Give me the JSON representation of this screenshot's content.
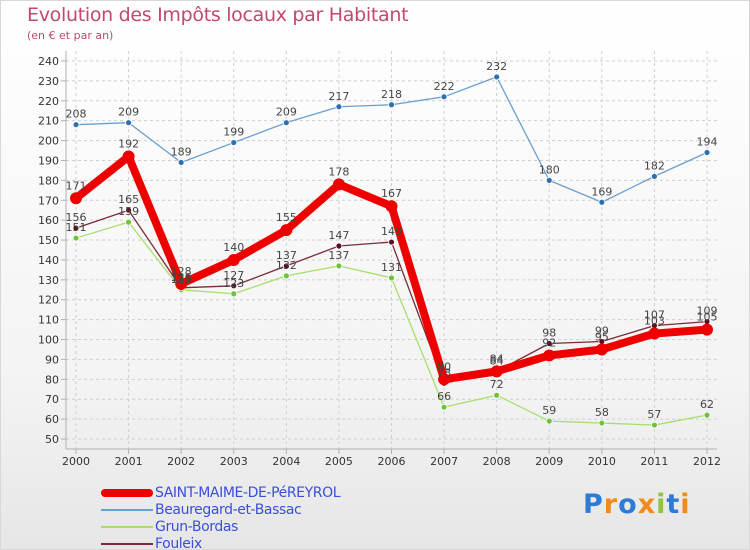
{
  "header": {
    "title": "Evolution des Impôts locaux par Habitant",
    "subtitle": "(en € et par an)"
  },
  "logo": {
    "text": "Proxiti",
    "letters": [
      {
        "char": "P",
        "color": "#2e7bd6"
      },
      {
        "char": "r",
        "color": "#f08a1c"
      },
      {
        "char": "o",
        "color": "#2e7bd6"
      },
      {
        "char": "x",
        "color": "#f08a1c"
      },
      {
        "char": "i",
        "color": "#8dc63f"
      },
      {
        "char": "t",
        "color": "#2e7bd6"
      },
      {
        "char": "i",
        "color": "#f08a1c"
      }
    ]
  },
  "chart_data": {
    "type": "line",
    "title": "Evolution des Impôts locaux par Habitant",
    "subtitle": "(en € et par an)",
    "xlabel": "",
    "ylabel": "",
    "x": [
      "2000",
      "2001",
      "2002",
      "2003",
      "2004",
      "2005",
      "2006",
      "2007",
      "2008",
      "2009",
      "2010",
      "2011",
      "2012"
    ],
    "ylim": [
      50,
      240
    ],
    "ytick_step": 10,
    "grid": true,
    "legend_position": "bottom-left",
    "series": [
      {
        "name": "Beauregard-et-Bassac",
        "color": "#6a9fd0",
        "marker": "#2f6fae",
        "width": "thin",
        "values": [
          208,
          209,
          189,
          199,
          209,
          217,
          218,
          222,
          232,
          180,
          169,
          182,
          194
        ]
      },
      {
        "name": "Grun-Bordas",
        "color": "#a6df6e",
        "marker": "#6fc23a",
        "width": "thin",
        "values": [
          151,
          159,
          125,
          123,
          132,
          137,
          131,
          66,
          72,
          59,
          58,
          57,
          62
        ]
      },
      {
        "name": "Fouleix",
        "color": "#7a2a3a",
        "marker": "#5a1020",
        "width": "thin",
        "values": [
          156,
          165,
          126,
          127,
          137,
          147,
          149,
          78,
          84,
          98,
          99,
          107,
          109
        ]
      },
      {
        "name": "SAINT-MAIME-DE-PéREYROL",
        "color": "#ee0000",
        "marker": "#ee0000",
        "width": "thick",
        "values": [
          171,
          192,
          128,
          140,
          155,
          178,
          167,
          80,
          84,
          92,
          95,
          103,
          105
        ]
      }
    ],
    "legend_order": [
      "SAINT-MAIME-DE-PéREYROL",
      "Beauregard-et-Bassac",
      "Grun-Bordas",
      "Fouleix"
    ]
  }
}
